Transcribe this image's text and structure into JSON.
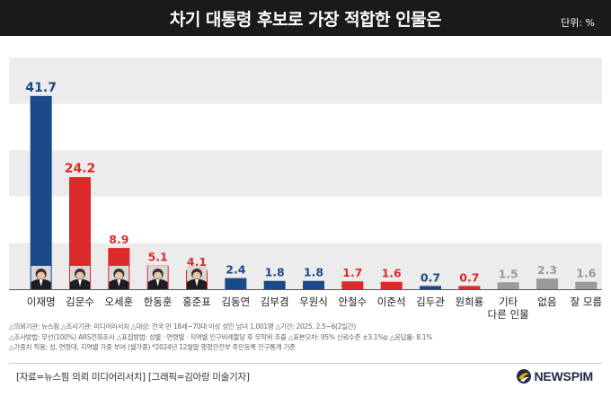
{
  "header": {
    "title": "차기 대통령 후보로 가장 적합한 인물은",
    "unit": "단위: %"
  },
  "colors": {
    "democratic": "#1b4a8a",
    "ppp": "#dc2a2a",
    "neutral": "#9a9a9a",
    "band": "#ececec",
    "header": "#1a1a1a"
  },
  "chart_data": {
    "type": "bar",
    "title": "차기 대통령 후보로 가장 적합한 인물은",
    "xlabel": "",
    "ylabel": "",
    "ylim": [
      0,
      50
    ],
    "grid": "horizontal bands",
    "categories": [
      "이재명",
      "김문수",
      "오세훈",
      "한동훈",
      "홍준표",
      "김동연",
      "김부겸",
      "우원식",
      "안철수",
      "이준석",
      "김두관",
      "원희룡",
      "기타\n다른 인물",
      "없음",
      "잘 모름"
    ],
    "values": [
      41.7,
      24.2,
      8.9,
      5.1,
      4.1,
      2.4,
      1.8,
      1.8,
      1.7,
      1.6,
      0.7,
      0.7,
      1.5,
      2.3,
      1.6
    ],
    "value_labels": [
      "41.7",
      "24.2",
      "8.9",
      "5.1",
      "4.1",
      "2.4",
      "1.8",
      "1.8",
      "1.7",
      "1.6",
      "0.7",
      "0.7",
      "1.5",
      "2.3",
      "1.6"
    ],
    "bar_colors": [
      "democratic",
      "ppp",
      "ppp",
      "ppp",
      "ppp",
      "democratic",
      "democratic",
      "democratic",
      "ppp",
      "ppp",
      "democratic",
      "ppp",
      "neutral",
      "neutral",
      "neutral"
    ],
    "photos": [
      true,
      true,
      true,
      true,
      true,
      false,
      false,
      false,
      false,
      false,
      false,
      false,
      false,
      false,
      false
    ]
  },
  "notes": [
    "△의뢰기관: 뉴스핌  △조사기관: 미디어리서치  △대상: 전국 만 18세~70대 이상 성인 남녀 1,001명  △기간: 2025. 2.5~6(2일간)",
    "△조사방법: 무선(100%) ARS전화조사  △표집방법: 성별 · 연령별 · 지역별 인구비례할당 후 무작위 추출  △표본오차: 95% 신뢰수준 ±3.1%p  △응답률: 8.1%",
    "△가중치 적용: 성, 연령대, 지역별 가중 부여 (셀가중)  *2024년 12월말 행정안전부 주민등록 인구통계 기준"
  ],
  "footer": {
    "source": "[자료=뉴스핌 의뢰 미디어리서치] [그래픽=김아랑 미술기자]",
    "logo_text": "NEWSPIM"
  }
}
